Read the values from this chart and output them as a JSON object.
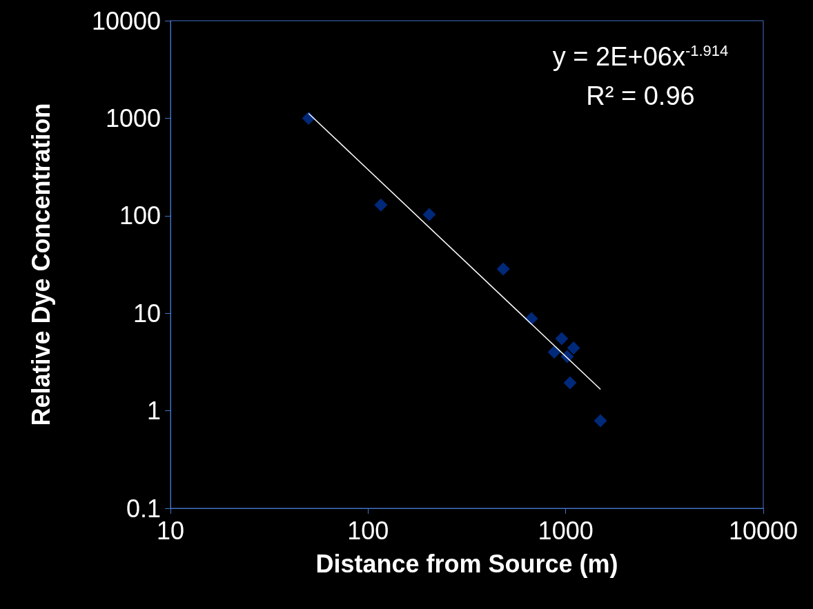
{
  "chart_data": {
    "type": "scatter",
    "xlabel": "Distance from Source (m)",
    "ylabel": "Relative Dye Concentration",
    "log": "xy",
    "xlim": [
      10,
      10000
    ],
    "xticks": [
      10,
      100,
      1000,
      10000
    ],
    "ylim": [
      0.1,
      10000
    ],
    "yticks": [
      0.1,
      1,
      10,
      100,
      1000,
      10000
    ],
    "marker": "diamond",
    "grid": false,
    "series": [
      {
        "color": "#003399",
        "x": [
          50,
          116,
          204,
          483,
          671,
          875,
          955,
          1018,
          1096,
          1052,
          1500
        ],
        "values": [
          1000,
          129,
          103,
          28.4,
          8.8,
          4.0,
          5.5,
          3.6,
          4.4,
          1.94,
          0.79
        ]
      },
      {
        "type": "line",
        "color": "#ffffff",
        "marker": "none",
        "x": [
          50,
          1500
        ],
        "values": [
          1120,
          1.66
        ]
      }
    ],
    "annotations": [
      "y = 2E+06x$^{-1.914}$",
      "R² = 0.96"
    ]
  }
}
